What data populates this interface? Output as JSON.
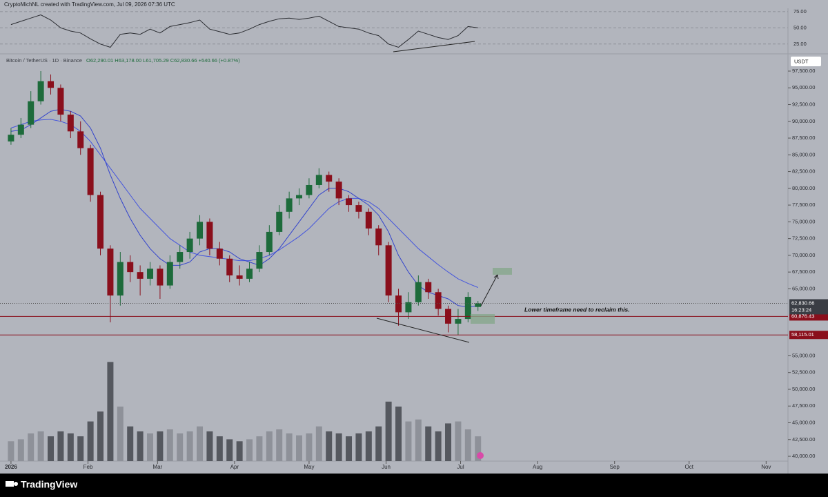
{
  "header": "CryptoMichNL created with TradingView.com, Jul 09, 2026 07:36 UTC",
  "footer_brand": "TradingView",
  "chart_data": {
    "type": "candlestick",
    "title": "Bitcoin / TetherUS · 1D · Binance",
    "ohlc_text": "O62,290.01 H63,178.00 L61,705.29 C62,830.66 +540.66 (+0.87%)",
    "currency": "USDT",
    "annotation": "Lower timeframe need to reclaim this.",
    "colors": {
      "up": "#1d6b3b",
      "down": "#8a0f1c",
      "ma_fast": "#3344cc",
      "ma_slow": "#4455dd",
      "vol_up": "#8e9199",
      "vol_down": "#55585f"
    },
    "x": [
      0,
      4,
      8,
      12,
      16,
      20,
      24,
      28,
      32,
      36,
      40,
      44,
      48,
      52,
      56,
      60,
      64,
      68,
      72,
      76,
      80,
      84,
      88,
      92,
      96,
      100,
      104,
      108,
      112,
      116,
      120,
      124,
      128,
      132,
      136,
      140,
      144,
      148,
      152,
      156,
      160,
      164,
      168,
      172,
      176,
      180,
      184,
      188
    ],
    "open": [
      87000,
      88000,
      89500,
      93000,
      96000,
      95000,
      91000,
      88500,
      86000,
      79000,
      71000,
      64000,
      69000,
      67500,
      66500,
      68000,
      65500,
      69000,
      70500,
      72500,
      75000,
      71000,
      69500,
      67000,
      66500,
      68000,
      70500,
      73500,
      76500,
      78500,
      79000,
      80500,
      82000,
      81000,
      78500,
      77500,
      76500,
      74000,
      71500,
      64000,
      61500,
      63000,
      66000,
      64500,
      62000,
      59800,
      60500,
      62290.01
    ],
    "high": [
      89000,
      90500,
      94500,
      97500,
      97000,
      95500,
      91500,
      90000,
      86500,
      79500,
      71500,
      70500,
      70000,
      68500,
      69000,
      68500,
      70000,
      71500,
      73500,
      76000,
      75500,
      72000,
      70000,
      68500,
      69000,
      71500,
      74500,
      77500,
      79500,
      80000,
      81500,
      83000,
      82500,
      81500,
      79000,
      78000,
      77000,
      74500,
      72000,
      65000,
      64500,
      67000,
      66500,
      65000,
      62500,
      62000,
      64500,
      63178
    ],
    "low": [
      86500,
      87500,
      89000,
      92500,
      94000,
      90000,
      87500,
      85000,
      78000,
      70000,
      60000,
      62500,
      66000,
      64000,
      65500,
      63500,
      65000,
      68000,
      69500,
      71500,
      70000,
      68500,
      66000,
      65500,
      66000,
      67500,
      70000,
      73000,
      75500,
      77500,
      78500,
      80000,
      79500,
      77500,
      76500,
      75500,
      73000,
      70000,
      63000,
      59500,
      60500,
      62500,
      63500,
      61000,
      58500,
      58100,
      60000,
      61705.29
    ],
    "close": [
      88000,
      89500,
      93000,
      96000,
      95000,
      91000,
      88500,
      86000,
      79000,
      71000,
      64000,
      69000,
      67500,
      66500,
      68000,
      65500,
      69000,
      70500,
      72500,
      75000,
      71000,
      69500,
      67000,
      66500,
      68000,
      70500,
      73500,
      76500,
      78500,
      79000,
      80500,
      82000,
      81000,
      78500,
      77500,
      76500,
      74000,
      71500,
      64000,
      61500,
      63000,
      66000,
      64500,
      62000,
      59800,
      60500,
      63800,
      62830.66
    ],
    "ma_fast": [
      88500,
      88700,
      89500,
      90500,
      91500,
      91800,
      91500,
      90800,
      89000,
      86000,
      82000,
      78500,
      75500,
      73000,
      71000,
      69500,
      68500,
      68500,
      69000,
      70500,
      71000,
      71000,
      70500,
      69500,
      69000,
      68500,
      69500,
      71000,
      73000,
      75000,
      77000,
      79000,
      80000,
      80000,
      79500,
      78500,
      77500,
      76000,
      73500,
      70000,
      67500,
      65500,
      64500,
      64000,
      63500,
      62500,
      62300,
      62500
    ],
    "ma_slow": [
      89000,
      89500,
      90000,
      90200,
      90300,
      90000,
      89500,
      88500,
      87000,
      85000,
      83000,
      81000,
      79000,
      77000,
      75500,
      74000,
      72500,
      71500,
      70500,
      70000,
      69800,
      69600,
      69400,
      69200,
      69200,
      69500,
      70000,
      70800,
      71800,
      72800,
      74000,
      75500,
      77000,
      78000,
      78500,
      78500,
      78000,
      77000,
      75500,
      74000,
      72500,
      71000,
      69800,
      68600,
      67500,
      66500,
      65800,
      65200
    ],
    "volume": [
      20,
      22,
      28,
      30,
      25,
      30,
      28,
      25,
      40,
      50,
      100,
      55,
      35,
      30,
      28,
      30,
      32,
      28,
      30,
      35,
      30,
      25,
      22,
      20,
      22,
      25,
      30,
      32,
      28,
      26,
      28,
      35,
      30,
      28,
      25,
      28,
      30,
      35,
      60,
      55,
      40,
      42,
      35,
      30,
      38,
      40,
      32,
      25
    ],
    "volume_lim": [
      0,
      110
    ],
    "rsi": [
      55,
      60,
      65,
      70,
      62,
      50,
      45,
      42,
      33,
      25,
      20,
      40,
      42,
      40,
      48,
      42,
      52,
      55,
      58,
      62,
      48,
      44,
      40,
      42,
      48,
      55,
      60,
      64,
      65,
      63,
      65,
      68,
      60,
      52,
      50,
      48,
      42,
      38,
      25,
      20,
      32,
      45,
      40,
      35,
      32,
      38,
      52,
      50
    ],
    "rsi_ylim": [
      12,
      78
    ],
    "rsi_yticks": [
      {
        "value": 75,
        "label": "75.00"
      },
      {
        "value": 50,
        "label": "50.00"
      },
      {
        "value": 25,
        "label": "25.00"
      }
    ],
    "xlim": [
      -2.2,
      312.8
    ],
    "xticks": [
      {
        "value": 0,
        "label": "2026"
      },
      {
        "value": 31,
        "label": "Feb"
      },
      {
        "value": 59,
        "label": "Mar"
      },
      {
        "value": 90,
        "label": "Apr"
      },
      {
        "value": 120,
        "label": "May"
      },
      {
        "value": 151,
        "label": "Jun"
      },
      {
        "value": 181,
        "label": "Jul"
      },
      {
        "value": 212,
        "label": "Aug"
      },
      {
        "value": 243,
        "label": "Sep"
      },
      {
        "value": 273,
        "label": "Oct"
      },
      {
        "value": 304,
        "label": "Nov"
      }
    ],
    "ylim": [
      37530,
      99870
    ],
    "yticks": [
      {
        "value": 97500,
        "label": "97,500.00"
      },
      {
        "value": 95000,
        "label": "95,000.00"
      },
      {
        "value": 92500,
        "label": "92,500.00"
      },
      {
        "value": 90000,
        "label": "90,000.00"
      },
      {
        "value": 87500,
        "label": "87,500.00"
      },
      {
        "value": 85000,
        "label": "85,000.00"
      },
      {
        "value": 82500,
        "label": "82,500.00"
      },
      {
        "value": 80000,
        "label": "80,000.00"
      },
      {
        "value": 77500,
        "label": "77,500.00"
      },
      {
        "value": 75000,
        "label": "75,000.00"
      },
      {
        "value": 72500,
        "label": "72,500.00"
      },
      {
        "value": 70000,
        "label": "70,000.00"
      },
      {
        "value": 67500,
        "label": "67,500.00"
      },
      {
        "value": 65000,
        "label": "65,000.00"
      },
      {
        "value": 55000,
        "label": "55,000.00"
      },
      {
        "value": 52500,
        "label": "52,500.00"
      },
      {
        "value": 50000,
        "label": "50,000.00"
      },
      {
        "value": 47500,
        "label": "47,500.00"
      },
      {
        "value": 45000,
        "label": "45,000.00"
      },
      {
        "value": 42500,
        "label": "42,500.00"
      },
      {
        "value": 40000,
        "label": "40,000.00"
      }
    ],
    "last_price": {
      "value": 62830.66,
      "label": "62,830.66"
    },
    "countdown": "16:23:24",
    "levels": [
      {
        "value": 60876.43,
        "label": "60,876.43"
      },
      {
        "value": 58115.01,
        "label": "58,115.01"
      }
    ],
    "level_color": "#8a0f1c"
  }
}
